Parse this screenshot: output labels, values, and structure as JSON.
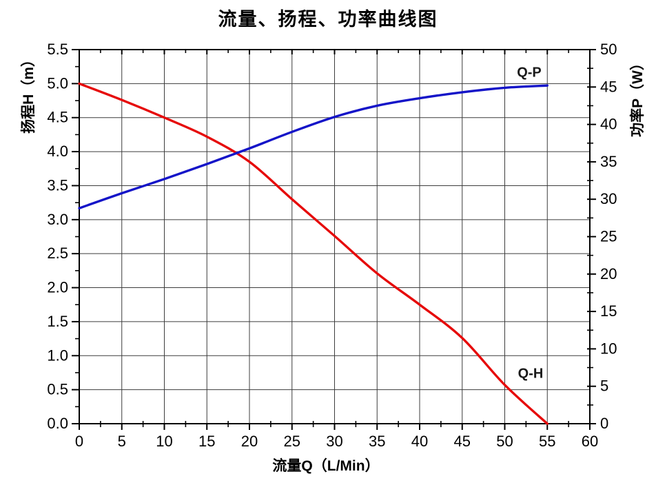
{
  "title": "流量、扬程、功率曲线图",
  "colors": {
    "background": "#ffffff",
    "axis": "#000000",
    "grid": "#3c3c3c",
    "qh_curve": "#e60a0a",
    "qp_curve": "#1414c8",
    "text": "#000000"
  },
  "chart_data": {
    "type": "line",
    "title": "流量、扬程、功率曲线图",
    "xlabel": "流量Q（L/Min）",
    "ylabel_left": "扬程H（m）",
    "ylabel_right": "功率P（W）",
    "grid": true,
    "xlim": [
      0,
      60
    ],
    "x_major_step": 5,
    "x_minor_step": 2.5,
    "x_tick_labels": [
      "0",
      "5",
      "10",
      "15",
      "20",
      "25",
      "30",
      "35",
      "40",
      "45",
      "50",
      "55",
      "60"
    ],
    "ylim_left": [
      0.0,
      5.5
    ],
    "y_left_major_step": 0.5,
    "y_left_minor_step": 0.25,
    "y_left_tick_labels": [
      "0.0",
      "0.5",
      "1.0",
      "1.5",
      "2.0",
      "2.5",
      "3.0",
      "3.5",
      "4.0",
      "4.5",
      "5.0",
      "5.5"
    ],
    "ylim_right": [
      0,
      50
    ],
    "y_right_major_step": 5,
    "y_right_minor_step": 2.5,
    "y_right_tick_labels": [
      "0",
      "5",
      "10",
      "15",
      "20",
      "25",
      "30",
      "35",
      "40",
      "45",
      "50"
    ],
    "series": [
      {
        "name": "Q-H",
        "axis": "left",
        "color": "#e60a0a",
        "x": [
          0,
          5,
          10,
          15,
          20,
          25,
          30,
          35,
          40,
          45,
          50,
          55
        ],
        "y": [
          5.0,
          4.76,
          4.5,
          4.22,
          3.85,
          3.3,
          2.76,
          2.21,
          1.75,
          1.26,
          0.57,
          0.0
        ]
      },
      {
        "name": "Q-P",
        "axis": "right",
        "color": "#1414c8",
        "x": [
          0,
          5,
          10,
          15,
          20,
          25,
          30,
          35,
          40,
          45,
          50,
          55
        ],
        "y": [
          28.8,
          30.8,
          32.7,
          34.7,
          36.8,
          39.0,
          41.0,
          42.5,
          43.5,
          44.3,
          44.9,
          45.2
        ]
      }
    ]
  }
}
